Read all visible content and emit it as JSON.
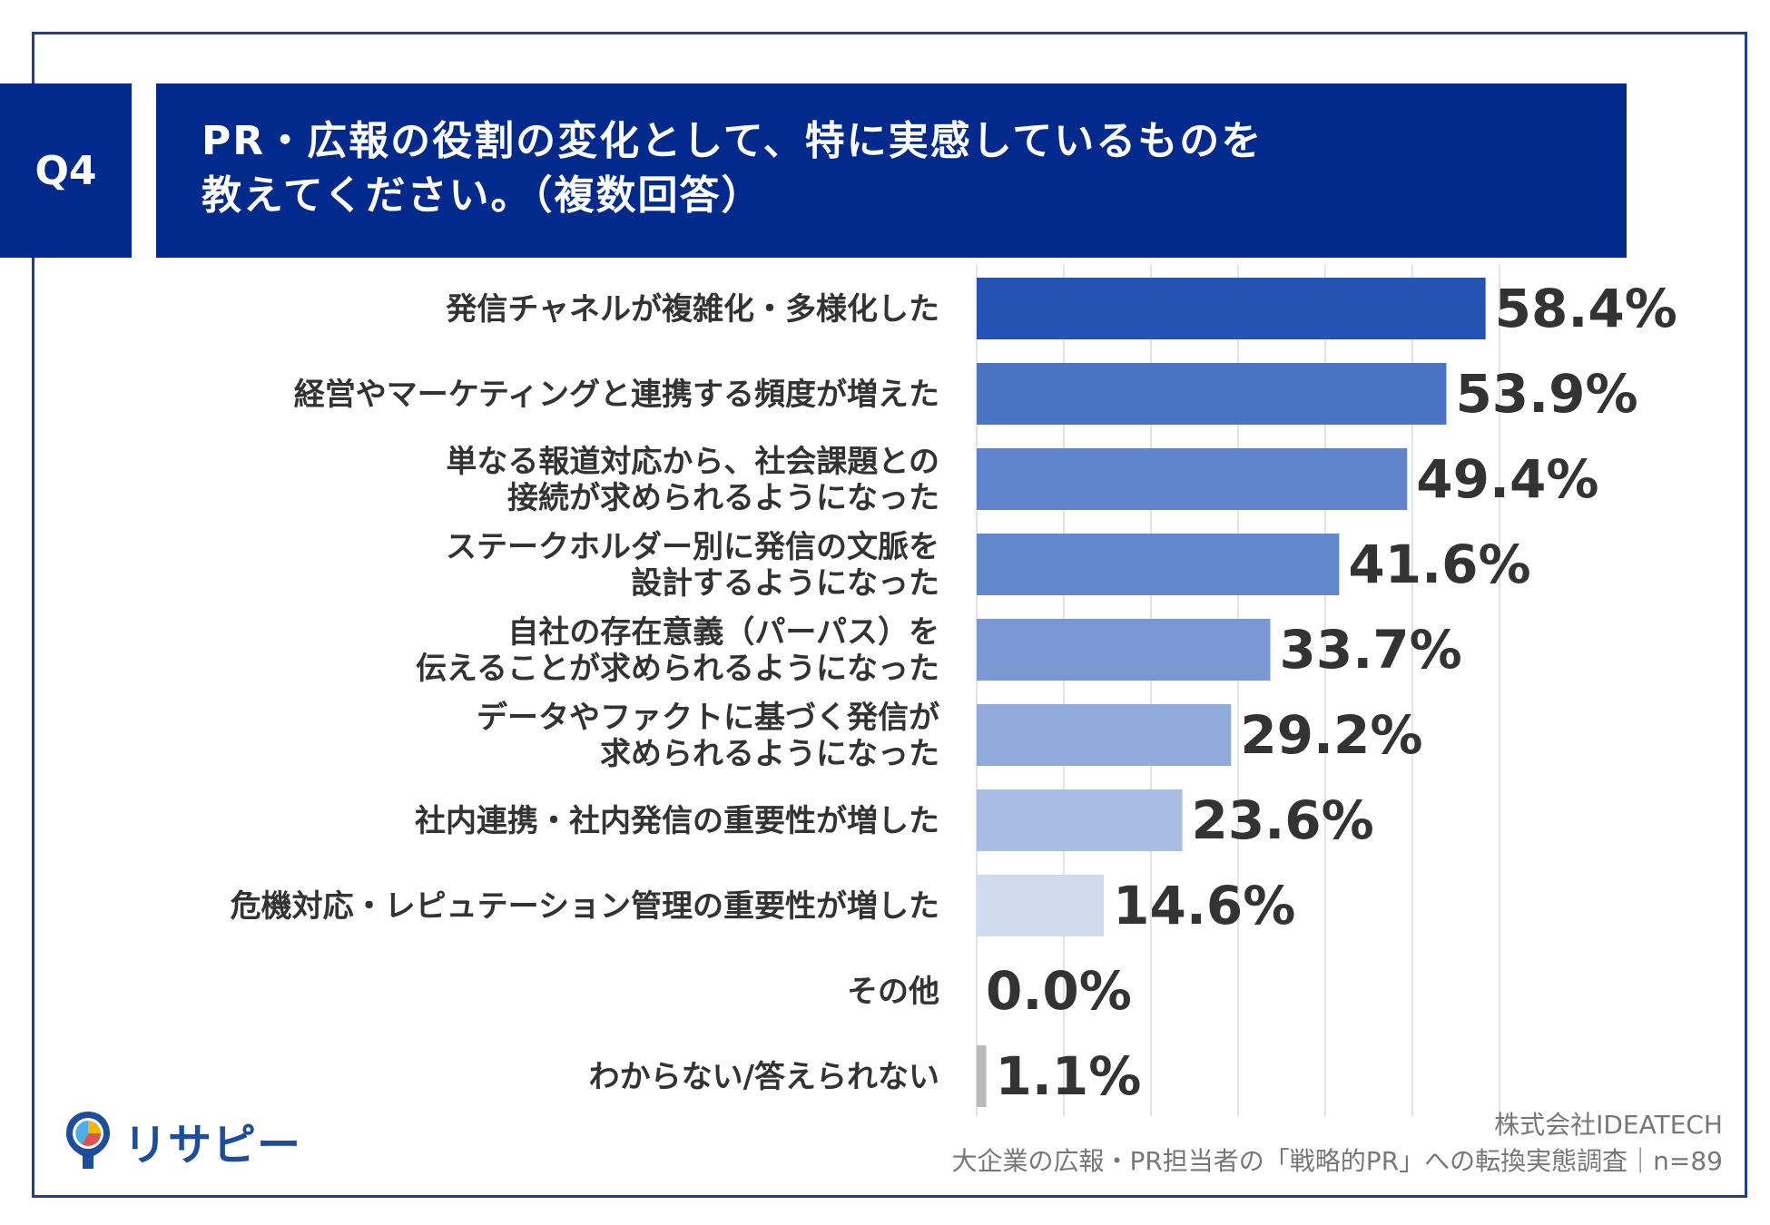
{
  "header": {
    "q_label": "Q4",
    "title_line1": "PR・広報の役割の変化として、特に実感しているものを",
    "title_line2": "教えてください。（複数回答）"
  },
  "chart_data": {
    "type": "bar",
    "orientation": "horizontal",
    "categories": [
      [
        "発信チャネルが複雑化・多様化した"
      ],
      [
        "経営やマーケティングと連携する頻度が増えた"
      ],
      [
        "単なる報道対応から、社会課題との",
        "接続が求められるようになった"
      ],
      [
        "ステークホルダー別に発信の文脈を",
        "設計するようになった"
      ],
      [
        "自社の存在意義（パーパス）を",
        "伝えることが求められるようになった"
      ],
      [
        "データやファクトに基づく発信が",
        "求められるようになった"
      ],
      [
        "社内連携・社内発信の重要性が増した"
      ],
      [
        "危機対応・レピュテーション管理の重要性が増した"
      ],
      [
        "その他"
      ],
      [
        "わからない/答えられない"
      ]
    ],
    "values": [
      58.4,
      53.9,
      49.4,
      41.6,
      33.7,
      29.2,
      23.6,
      14.6,
      0.0,
      1.1
    ],
    "value_labels": [
      "58.4%",
      "53.9%",
      "49.4%",
      "41.6%",
      "33.7%",
      "29.2%",
      "23.6%",
      "14.6%",
      "0.0%",
      "1.1%"
    ],
    "bar_colors": [
      "#2453b3",
      "#4a73c4",
      "#5f84cb",
      "#6187cc",
      "#7a99d4",
      "#8faadb",
      "#a7bde3",
      "#d0dbf0",
      "#cccccc",
      "#bbbbbb"
    ],
    "xlim": [
      0,
      60
    ],
    "grid": true
  },
  "logo": {
    "text": "リサピー"
  },
  "footer": {
    "company": "株式会社IDEATECH",
    "survey": "大企業の広報・PR担当者の「戦略的PR」への転換実態調査｜n=89"
  }
}
